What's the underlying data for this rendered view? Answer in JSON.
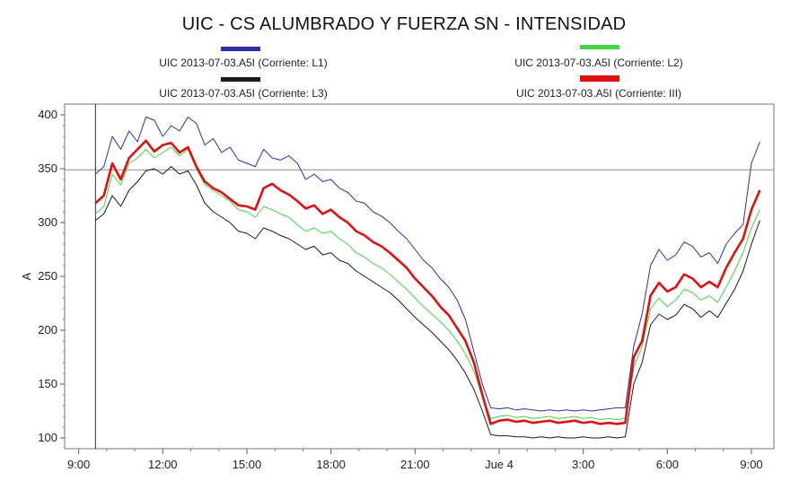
{
  "chart_data": {
    "type": "line",
    "title": "UIC - CS ALUMBRADO Y FUERZA SN - INTENSIDAD",
    "ylabel": "A",
    "xlabel": "",
    "ylim": [
      90,
      410
    ],
    "xlim": [
      8.5,
      33.8
    ],
    "yticks": [
      100,
      150,
      200,
      250,
      300,
      350,
      400
    ],
    "xticks": [
      {
        "x": 9,
        "label": "9:00"
      },
      {
        "x": 12,
        "label": "12:00"
      },
      {
        "x": 15,
        "label": "15:00"
      },
      {
        "x": 18,
        "label": "18:00"
      },
      {
        "x": 21,
        "label": "21:00"
      },
      {
        "x": 24,
        "label": "Jue 4"
      },
      {
        "x": 27,
        "label": "3:00"
      },
      {
        "x": 30,
        "label": "6:00"
      },
      {
        "x": 33,
        "label": "9:00"
      }
    ],
    "reference_line": 349,
    "marker_x": 9.6,
    "legend_placement": "top",
    "grid": false,
    "x": [
      9.6,
      9.9,
      10.2,
      10.5,
      10.8,
      11.1,
      11.4,
      11.7,
      12.0,
      12.3,
      12.6,
      12.9,
      13.2,
      13.5,
      13.8,
      14.1,
      14.4,
      14.7,
      15.0,
      15.3,
      15.6,
      15.9,
      16.2,
      16.5,
      16.8,
      17.1,
      17.4,
      17.7,
      18.0,
      18.3,
      18.6,
      18.9,
      19.2,
      19.5,
      19.8,
      20.1,
      20.4,
      20.7,
      21.0,
      21.3,
      21.6,
      21.9,
      22.2,
      22.5,
      22.8,
      23.1,
      23.4,
      23.7,
      24.0,
      24.3,
      24.6,
      24.9,
      25.2,
      25.5,
      25.8,
      26.1,
      26.4,
      26.7,
      27.0,
      27.3,
      27.6,
      27.9,
      28.2,
      28.5,
      28.8,
      29.1,
      29.4,
      29.7,
      30.0,
      30.3,
      30.6,
      30.9,
      31.2,
      31.5,
      31.8,
      32.1,
      32.4,
      32.7,
      33.0,
      33.3
    ],
    "series": [
      {
        "name": "UIC 2013-07-03.A5I (Corriente: L1)",
        "color": "#2b2fa8",
        "width": 1,
        "values": [
          345,
          352,
          380,
          368,
          385,
          375,
          398,
          395,
          380,
          390,
          385,
          398,
          392,
          372,
          378,
          365,
          370,
          358,
          355,
          352,
          368,
          360,
          358,
          362,
          355,
          340,
          345,
          338,
          340,
          332,
          328,
          320,
          318,
          310,
          306,
          300,
          292,
          285,
          275,
          265,
          258,
          248,
          240,
          228,
          210,
          180,
          150,
          128,
          127,
          128,
          126,
          127,
          126,
          125,
          126,
          125,
          126,
          125,
          126,
          125,
          126,
          127,
          128,
          128,
          185,
          215,
          260,
          275,
          265,
          270,
          282,
          278,
          268,
          272,
          262,
          280,
          290,
          298,
          355,
          375
        ]
      },
      {
        "name": "UIC 2013-07-03.A5I (Corriente: L2)",
        "color": "#44d444",
        "width": 1,
        "values": [
          308,
          315,
          345,
          335,
          355,
          360,
          368,
          360,
          365,
          370,
          362,
          368,
          350,
          335,
          330,
          325,
          320,
          312,
          310,
          305,
          315,
          312,
          308,
          305,
          298,
          292,
          295,
          290,
          292,
          285,
          280,
          272,
          268,
          262,
          258,
          252,
          245,
          238,
          230,
          222,
          215,
          208,
          200,
          190,
          178,
          162,
          138,
          118,
          120,
          121,
          119,
          120,
          118,
          119,
          120,
          118,
          119,
          120,
          118,
          119,
          117,
          118,
          117,
          118,
          165,
          185,
          220,
          230,
          222,
          228,
          238,
          235,
          228,
          232,
          226,
          240,
          255,
          272,
          295,
          312
        ]
      },
      {
        "name": "UIC 2013-07-03.A5I (Corriente: L3)",
        "color": "#1a1a1a",
        "width": 1,
        "values": [
          302,
          308,
          325,
          315,
          330,
          338,
          348,
          350,
          345,
          352,
          345,
          348,
          335,
          318,
          310,
          305,
          300,
          292,
          290,
          285,
          295,
          292,
          288,
          285,
          280,
          275,
          278,
          270,
          272,
          265,
          262,
          255,
          250,
          245,
          240,
          235,
          228,
          220,
          212,
          205,
          198,
          190,
          182,
          172,
          160,
          145,
          125,
          103,
          102,
          102,
          101,
          101,
          100,
          101,
          100,
          101,
          100,
          100,
          101,
          100,
          100,
          101,
          100,
          101,
          150,
          170,
          205,
          215,
          210,
          214,
          224,
          220,
          212,
          218,
          212,
          225,
          238,
          255,
          280,
          302
        ]
      },
      {
        "name": "UIC 2013-07-03.A5I (Corriente: III)",
        "color": "#dd1111",
        "width": 2.6,
        "values": [
          318,
          325,
          355,
          340,
          360,
          368,
          376,
          366,
          372,
          374,
          365,
          370,
          352,
          338,
          332,
          328,
          322,
          316,
          315,
          312,
          332,
          336,
          330,
          326,
          320,
          313,
          316,
          308,
          312,
          305,
          300,
          292,
          288,
          282,
          278,
          272,
          265,
          258,
          248,
          240,
          232,
          222,
          214,
          202,
          190,
          170,
          140,
          113,
          116,
          117,
          115,
          116,
          114,
          115,
          116,
          114,
          115,
          116,
          114,
          115,
          113,
          114,
          113,
          114,
          175,
          190,
          232,
          244,
          236,
          240,
          252,
          248,
          240,
          245,
          240,
          258,
          272,
          285,
          312,
          330
        ]
      }
    ]
  }
}
